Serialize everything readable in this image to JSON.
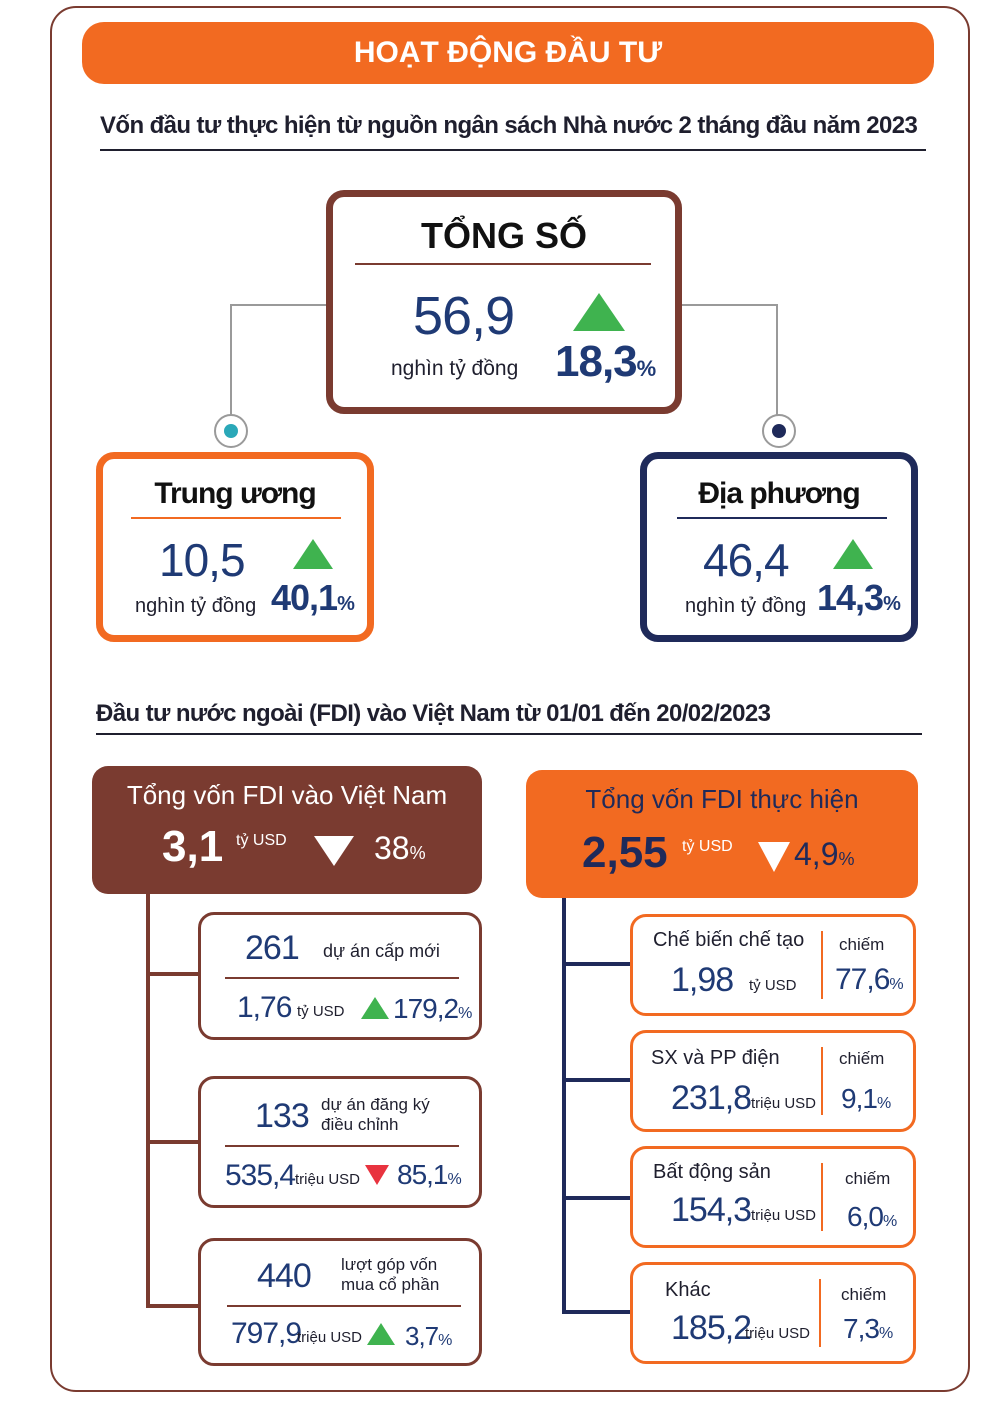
{
  "banner": "HOẠT ĐỘNG ĐẦU TƯ",
  "section1": {
    "title": "Vốn đầu tư thực hiện từ nguồn ngân sách Nhà nước 2 tháng đầu năm 2023",
    "total": {
      "label": "TỔNG SỐ",
      "value": "56,9",
      "unit": "nghìn tỷ đồng",
      "change": "18,3",
      "pct": "%",
      "direction": "up"
    },
    "central": {
      "label": "Trung ương",
      "value": "10,5",
      "unit": "nghìn tỷ đồng",
      "change": "40,1",
      "pct": "%",
      "direction": "up"
    },
    "local": {
      "label": "Địa phương",
      "value": "46,4",
      "unit": "nghìn tỷ đồng",
      "change": "14,3",
      "pct": "%",
      "direction": "up"
    }
  },
  "section2": {
    "title": "Đầu tư nước ngoài (FDI) vào Việt Nam từ 01/01 đến 20/02/2023",
    "registered": {
      "label": "Tổng vốn FDI vào Việt Nam",
      "value": "3,1",
      "unit": "tỷ USD",
      "change": "38",
      "pct": "%",
      "direction": "down",
      "items": [
        {
          "count": "261",
          "desc": "dự án cấp mới",
          "desc2": "",
          "value": "1,76",
          "unit": "tỷ USD",
          "change": "179,2",
          "pct": "%",
          "direction": "up"
        },
        {
          "count": "133",
          "desc": "dự án đăng ký",
          "desc2": "điều chỉnh",
          "value": "535,4",
          "unit": "triệu USD",
          "change": "85,1",
          "pct": "%",
          "direction": "down"
        },
        {
          "count": "440",
          "desc": "lượt góp vốn",
          "desc2": "mua cổ phần",
          "value": "797,9",
          "unit": "triệu USD",
          "change": "3,7",
          "pct": "%",
          "direction": "up"
        }
      ]
    },
    "disbursed": {
      "label": "Tổng vốn FDI thực hiện",
      "value": "2,55",
      "unit": "tỷ USD",
      "change": "4,9",
      "pct": "%",
      "direction": "down",
      "items": [
        {
          "sector": "Chế biến chế tạo",
          "value": "1,98",
          "unit": "tỷ USD",
          "share_label": "chiếm",
          "share": "77,6",
          "pct": "%"
        },
        {
          "sector": "SX và PP điện",
          "value": "231,8",
          "unit": "triệu USD",
          "share_label": "chiếm",
          "share": "9,1",
          "pct": "%"
        },
        {
          "sector": "Bất động sản",
          "value": "154,3",
          "unit": "triệu USD",
          "share_label": "chiếm",
          "share": "6,0",
          "pct": "%"
        },
        {
          "sector": "Khác",
          "value": "185,2",
          "unit": "triệu USD",
          "share_label": "chiếm",
          "share": "7,3",
          "pct": "%"
        }
      ]
    }
  },
  "colors": {
    "orange": "#f26a21",
    "brown": "#7a3b30",
    "navy": "#1f2a5a",
    "green": "#3fb34f",
    "red": "#e8333f"
  }
}
